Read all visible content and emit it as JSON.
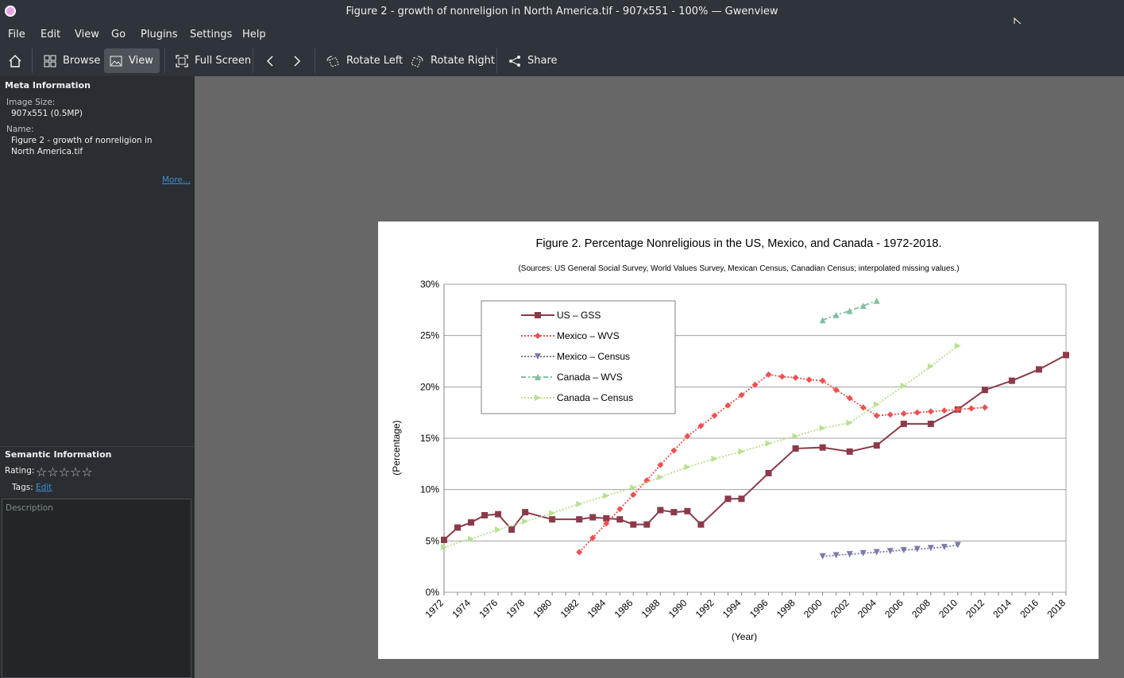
{
  "window": {
    "title": "Figure 2 - growth of nonreligion in North America.tif - 907x551 - 100% — Gwenview"
  },
  "menu": [
    "File",
    "Edit",
    "View",
    "Go",
    "Plugins",
    "Settings",
    "Help"
  ],
  "toolbar": {
    "browse": "Browse",
    "view": "View",
    "fullscreen": "Full Screen",
    "rotate_left": "Rotate Left",
    "rotate_right": "Rotate Right",
    "share": "Share"
  },
  "sidebar": {
    "meta_header": "Meta Information",
    "image_size_label": "Image Size:",
    "image_size_value": "907x551 (0.5MP)",
    "name_label": "Name:",
    "name_value": "Figure 2 - growth of nonreligion in North America.tif",
    "more_link": "More...",
    "semantic_header": "Semantic Information",
    "rating_label": "Rating:",
    "rating_value": 0,
    "rating_max": 5,
    "tags_label": "Tags:",
    "tags_edit": "Edit",
    "description_placeholder": "Description"
  },
  "chart_data": {
    "type": "line",
    "title": "Figure 2. Percentage Nonreligious in the US, Mexico, and Canada - 1972-2018.",
    "subtitle": "(Sources: US General Social Survey, World Values Survey, Mexican Census, Canadian Census; interpolated missing values.)",
    "xlabel": "(Year)",
    "ylabel": "(Percentage)",
    "xlim": [
      1972,
      2018
    ],
    "ylim": [
      0,
      30
    ],
    "yticks": [
      "0%",
      "5%",
      "10%",
      "15%",
      "20%",
      "25%",
      "30%"
    ],
    "xticks": [
      "1972",
      "1974",
      "1976",
      "1978",
      "1980",
      "1982",
      "1984",
      "1986",
      "1988",
      "1990",
      "1992",
      "1994",
      "1996",
      "1998",
      "2000",
      "2002",
      "2004",
      "2006",
      "2008",
      "2010",
      "2012",
      "2014",
      "2016",
      "2018"
    ],
    "grid": true,
    "legend_position": "top-left",
    "series": [
      {
        "name": "US – GSS",
        "color": "#8b3a4a",
        "marker": "square",
        "style": "solid",
        "x": [
          1972,
          1973,
          1974,
          1975,
          1976,
          1977,
          1978,
          1980,
          1982,
          1983,
          1984,
          1985,
          1986,
          1987,
          1988,
          1989,
          1990,
          1991,
          1993,
          1994,
          1996,
          1998,
          2000,
          2002,
          2004,
          2006,
          2008,
          2010,
          2012,
          2014,
          2016,
          2018
        ],
        "y": [
          5.1,
          6.3,
          6.8,
          7.5,
          7.6,
          6.1,
          7.8,
          7.1,
          7.1,
          7.3,
          7.2,
          7.1,
          6.6,
          6.6,
          8.0,
          7.8,
          7.9,
          6.6,
          9.1,
          9.1,
          11.6,
          14.0,
          14.1,
          13.7,
          14.3,
          16.4,
          16.4,
          17.8,
          19.7,
          20.6,
          21.7,
          23.1
        ]
      },
      {
        "name": "Mexico – WVS",
        "color": "#f05050",
        "marker": "diamond",
        "style": "dotted",
        "x": [
          1982,
          1983,
          1984,
          1985,
          1986,
          1987,
          1988,
          1989,
          1990,
          1991,
          1992,
          1993,
          1994,
          1995,
          1996,
          1997,
          1998,
          1999,
          2000,
          2001,
          2002,
          2003,
          2004,
          2005,
          2006,
          2007,
          2008,
          2009,
          2010,
          2011,
          2012
        ],
        "y": [
          3.9,
          5.3,
          6.7,
          8.1,
          9.5,
          10.9,
          12.4,
          13.8,
          15.2,
          16.2,
          17.2,
          18.2,
          19.2,
          20.2,
          21.2,
          21.0,
          20.9,
          20.7,
          20.6,
          19.7,
          18.9,
          18.0,
          17.2,
          17.3,
          17.4,
          17.5,
          17.6,
          17.7,
          17.8,
          17.9,
          18.0
        ]
      },
      {
        "name": "Mexico – Census",
        "color": "#7a7aaa",
        "marker": "triangle-down",
        "style": "dotted",
        "x": [
          2000,
          2001,
          2002,
          2003,
          2004,
          2005,
          2006,
          2007,
          2008,
          2009,
          2010
        ],
        "y": [
          3.5,
          3.6,
          3.7,
          3.8,
          3.9,
          4.0,
          4.1,
          4.2,
          4.3,
          4.4,
          4.6
        ]
      },
      {
        "name": "Canada – WVS",
        "color": "#80c0a0",
        "marker": "triangle-up",
        "style": "dashdot",
        "x": [
          2000,
          2001,
          2002,
          2003,
          2004
        ],
        "y": [
          26.5,
          27.0,
          27.4,
          27.9,
          28.4
        ]
      },
      {
        "name": "Canada – Census",
        "color": "#b8e090",
        "marker": "triangle-right",
        "style": "dotted",
        "x": [
          1972,
          1974,
          1976,
          1978,
          1980,
          1982,
          1984,
          1986,
          1988,
          1990,
          1992,
          1994,
          1996,
          1998,
          2000,
          2002,
          2004,
          2006,
          2008,
          2010
        ],
        "y": [
          4.4,
          5.2,
          6.1,
          6.9,
          7.7,
          8.6,
          9.4,
          10.2,
          11.2,
          12.2,
          13.0,
          13.7,
          14.5,
          15.2,
          16.0,
          16.5,
          18.3,
          20.1,
          22.0,
          24.0
        ]
      }
    ]
  }
}
